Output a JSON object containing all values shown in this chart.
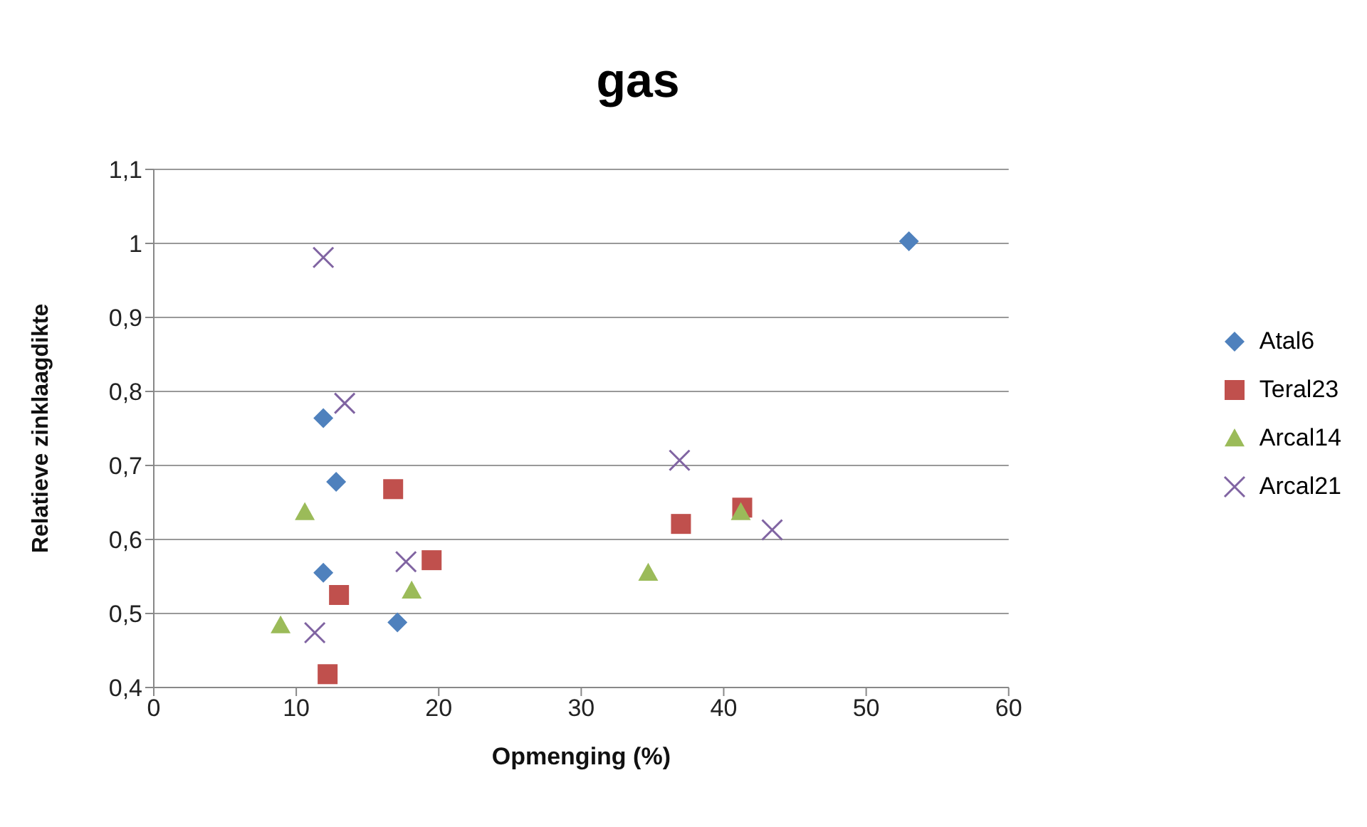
{
  "chart_data": {
    "type": "scatter",
    "title": "gas",
    "xlabel": "Opmenging (%)",
    "ylabel": "Relatieve zinklaagdikte",
    "xlim": [
      0,
      60
    ],
    "xticks": [
      0,
      10,
      20,
      30,
      40,
      50,
      60
    ],
    "ylim": [
      0.4,
      1.1
    ],
    "yticks": [
      {
        "value": 0.4,
        "label": "0,4"
      },
      {
        "value": 0.5,
        "label": "0,5"
      },
      {
        "value": 0.6,
        "label": "0,6"
      },
      {
        "value": 0.7,
        "label": "0,7"
      },
      {
        "value": 0.8,
        "label": "0,8"
      },
      {
        "value": 0.9,
        "label": "0,9"
      },
      {
        "value": 1,
        "label": "1"
      },
      {
        "value": 1.1,
        "label": "1,1"
      }
    ],
    "grid": "y",
    "legend": "right",
    "series": [
      {
        "name": "Atal6",
        "color": "#4f81bd",
        "marker": "diamond",
        "x": [
          11.9,
          12.8,
          11.9,
          17.1,
          37.0,
          53.0
        ],
        "values": [
          0.764,
          0.678,
          0.555,
          0.488,
          null,
          1.003
        ]
      },
      {
        "name": "Teral23",
        "color": "#c0504d",
        "marker": "square",
        "x": [
          16.8,
          13.0,
          19.5,
          12.2,
          37.0,
          41.3
        ],
        "values": [
          0.668,
          0.525,
          0.572,
          0.418,
          0.621,
          0.643
        ]
      },
      {
        "name": "Arcal14",
        "color": "#9bbb59",
        "marker": "triangle",
        "x": [
          10.6,
          8.9,
          18.1,
          34.7,
          41.2
        ],
        "values": [
          0.637,
          0.484,
          0.531,
          0.555,
          0.637
        ]
      },
      {
        "name": "Arcal21",
        "color": "#8064a2",
        "marker": "cross",
        "x": [
          11.9,
          13.4,
          17.7,
          11.3,
          36.9,
          43.4
        ],
        "values": [
          0.981,
          0.784,
          0.57,
          0.474,
          0.707,
          0.613
        ]
      }
    ]
  }
}
